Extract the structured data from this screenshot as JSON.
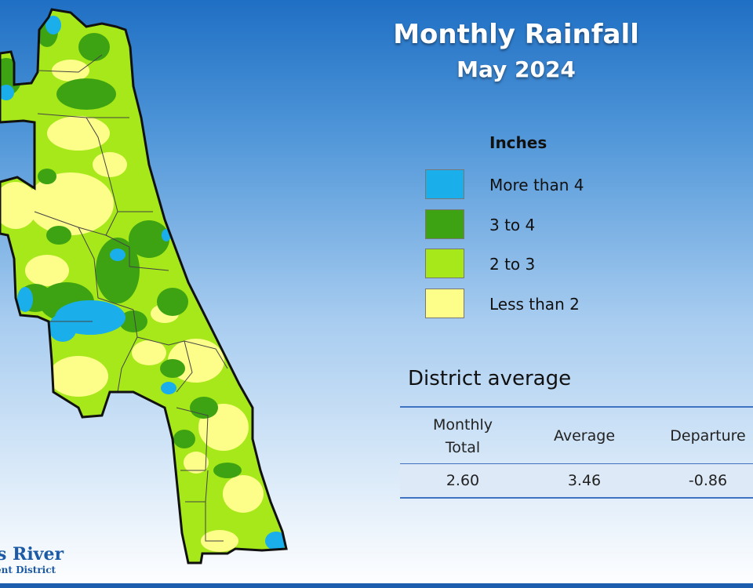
{
  "title": "Monthly Rainfall",
  "subtitle": "May 2024",
  "legend": {
    "title": "Inches",
    "items": [
      {
        "label": "More than 4",
        "color": "#1aaeea"
      },
      {
        "label": "3 to 4",
        "color": "#3ea312"
      },
      {
        "label": "2 to 3",
        "color": "#a6e81a"
      },
      {
        "label": "Less than 2",
        "color": "#fdfd8a"
      }
    ]
  },
  "district_average": {
    "title": "District average",
    "headers": [
      "Monthly\nTotal",
      "Average",
      "Departure"
    ],
    "values": [
      "2.60",
      "3.46",
      "-0.86"
    ]
  },
  "logo": {
    "line1": "s River",
    "line2": "ent District"
  }
}
